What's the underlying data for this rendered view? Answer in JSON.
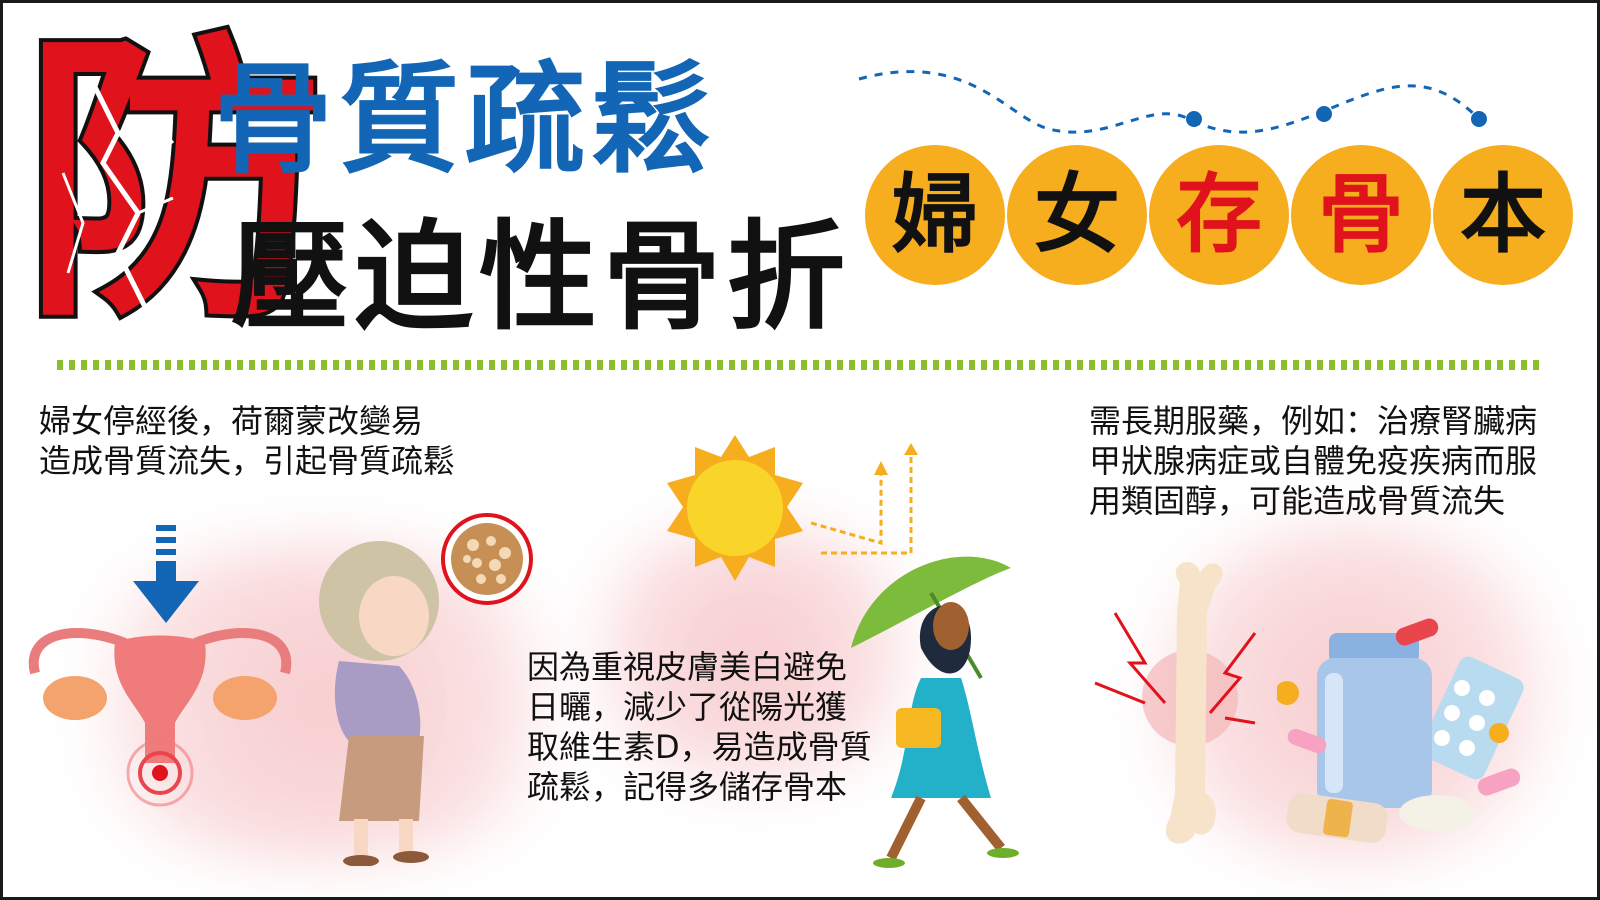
{
  "header": {
    "big_char": "防",
    "title_line1": "骨質疏鬆",
    "title_line2": "壓迫性骨折"
  },
  "badge_chars": [
    {
      "char": "婦",
      "color": "#111111"
    },
    {
      "char": "女",
      "color": "#111111"
    },
    {
      "char": "存",
      "color": "#e0121b"
    },
    {
      "char": "骨",
      "color": "#e0121b"
    },
    {
      "char": "本",
      "color": "#111111"
    }
  ],
  "sections": {
    "menopause": {
      "lines": [
        "婦女停經後，荷爾蒙改變易",
        "造成骨質流失，引起骨質疏鬆"
      ]
    },
    "sunlight": {
      "lines": [
        "因為重視皮膚美白避免",
        "日曬，減少了從陽光獲",
        "取維生素D，易造成骨質",
        "疏鬆，記得多儲存骨本"
      ]
    },
    "medication": {
      "lines": [
        "需長期服藥，例如：治療腎臟病",
        "甲狀腺病症或自體免疫疾病而服",
        "用類固醇，可能造成骨質流失"
      ]
    }
  },
  "colors": {
    "title_blue": "#1266b5",
    "accent_red": "#e0121b",
    "badge_yellow": "#f6ad1e",
    "divider_green": "#8bbf2a",
    "blob_pink": "#f2a3a8"
  },
  "icons": [
    "uterus-icon",
    "down-arrow-icon",
    "elderly-woman-icon",
    "bone-texture-icon",
    "sun-icon",
    "reflection-arrows-icon",
    "umbrella-woman-icon",
    "bone-fracture-icon",
    "medicine-bottle-icon",
    "pill-blister-icon",
    "bandage-icon"
  ]
}
